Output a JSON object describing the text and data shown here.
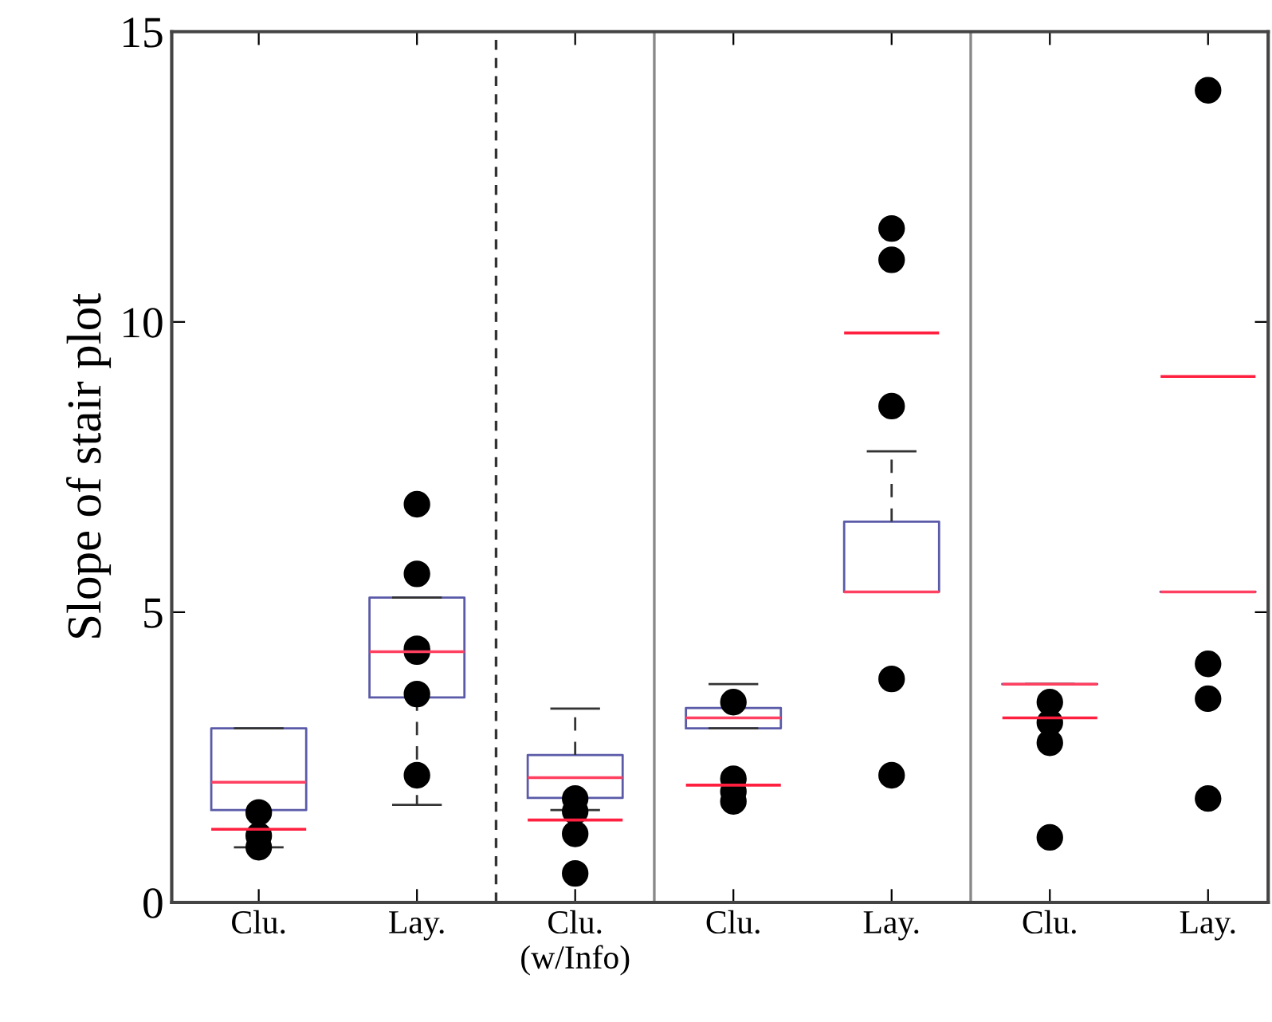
{
  "chart_data": {
    "type": "box",
    "ylabel": "Slope of stair plot",
    "categories": [
      "Clu.",
      "Lay.",
      "Clu.\n(w/Info)",
      "Clu.",
      "Lay.",
      "Clu.",
      "Lay."
    ],
    "ylim": [
      0,
      15
    ],
    "yticks": [
      0,
      5,
      10,
      15
    ],
    "grid": false,
    "color": "#5a5aa8",
    "boxes": [
      {
        "low": 0.95,
        "q1": 1.59,
        "median": 2.07,
        "q3": 3.0,
        "high": 3.0,
        "mean": 1.26,
        "outliers": [
          1.55,
          1.15,
          0.95
        ]
      },
      {
        "low": 1.68,
        "q1": 3.53,
        "median": 4.32,
        "q3": 5.25,
        "high": 5.25,
        "outliers": [
          6.86,
          5.66,
          4.37,
          4.32,
          3.59,
          2.19
        ]
      },
      {
        "low": 1.59,
        "q1": 1.8,
        "median": 2.15,
        "q3": 2.54,
        "high": 3.34,
        "mean": 1.42,
        "outliers": [
          1.79,
          1.57,
          1.18,
          0.5
        ]
      },
      {
        "low": 3.0,
        "q1": 3.0,
        "median": 3.18,
        "q3": 3.35,
        "high": 3.76,
        "mean": 2.02,
        "outliers": [
          3.45,
          2.13,
          1.91,
          1.74
        ]
      },
      {
        "low": 5.35,
        "q1": 5.35,
        "median": 5.35,
        "q3": 6.56,
        "high": 7.77,
        "mean": 9.81,
        "outliers": [
          11.61,
          11.07,
          8.55,
          3.85,
          2.19
        ]
      },
      {
        "low": 3.76,
        "q1": 3.76,
        "median": 3.76,
        "q3": 3.76,
        "high": 3.76,
        "mean": 3.18,
        "outliers": [
          3.45,
          3.1,
          2.75,
          1.12
        ]
      },
      {
        "low": 5.35,
        "q1": 5.35,
        "median": 5.35,
        "q3": 5.35,
        "high": 5.35,
        "mean": 9.06,
        "outliers": [
          13.99,
          4.11,
          3.51,
          1.79
        ]
      }
    ]
  }
}
